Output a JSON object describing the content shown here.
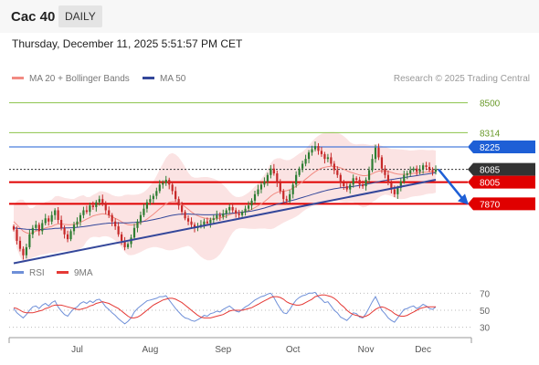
{
  "header": {
    "title": "Cac 40",
    "timeframe": "DAILY"
  },
  "timestamp": "Thursday, December 11, 2025 5:51:57 PM CET",
  "legend": {
    "ma20": "MA 20 + Bollinger Bands",
    "ma50": "MA 50",
    "credit": "Research © 2025 Trading Central"
  },
  "rsi_legend": {
    "rsi": "RSI",
    "ma9": "9MA"
  },
  "colors": {
    "up": "#2e7d32",
    "down": "#c62828",
    "resistance": "#8bc34a",
    "pivot": "#1e5fd6",
    "support": "#e00000",
    "last": "#333333",
    "trend": "#34479a",
    "band": "#fbe3e3",
    "rsi": "#6e8fd8",
    "rsi_ma": "#e53935"
  },
  "chart_data": [
    {
      "type": "candlestick",
      "x_labels": [
        "Jul",
        "Aug",
        "Sep",
        "Oct",
        "Nov",
        "Dec"
      ],
      "ylim": [
        7520,
        8600
      ],
      "levels": [
        {
          "label": "8500",
          "value": 8500,
          "kind": "resistance"
        },
        {
          "label": "8314",
          "value": 8314,
          "kind": "resistance"
        },
        {
          "label": "8225",
          "value": 8225,
          "kind": "pivot"
        },
        {
          "label": "8085",
          "value": 8085,
          "kind": "last"
        },
        {
          "label": "8005",
          "value": 8005,
          "kind": "support"
        },
        {
          "label": "7870",
          "value": 7870,
          "kind": "support"
        }
      ],
      "series": {
        "close": [
          7710,
          7640,
          7590,
          7550,
          7600,
          7680,
          7720,
          7740,
          7700,
          7750,
          7780,
          7760,
          7800,
          7830,
          7770,
          7720,
          7680,
          7650,
          7700,
          7740,
          7760,
          7800,
          7830,
          7820,
          7860,
          7850,
          7880,
          7900,
          7870,
          7830,
          7800,
          7760,
          7730,
          7680,
          7640,
          7600,
          7620,
          7660,
          7720,
          7760,
          7800,
          7840,
          7880,
          7900,
          7920,
          7950,
          7990,
          8000,
          8020,
          7990,
          7950,
          7900,
          7860,
          7820,
          7780,
          7760,
          7740,
          7720,
          7730,
          7740,
          7760,
          7750,
          7770,
          7780,
          7800,
          7790,
          7810,
          7830,
          7850,
          7830,
          7810,
          7800,
          7820,
          7840,
          7860,
          7890,
          7930,
          7960,
          7990,
          8010,
          8050,
          8090,
          8060,
          8000,
          7950,
          7900,
          7890,
          7930,
          7990,
          8050,
          8090,
          8120,
          8150,
          8190,
          8210,
          8230,
          8200,
          8180,
          8150,
          8160,
          8120,
          8080,
          8050,
          8000,
          7980,
          7960,
          7990,
          8030,
          8020,
          7990,
          7980,
          8020,
          8080,
          8150,
          8220,
          8160,
          8090,
          8050,
          8000,
          7960,
          7930,
          7970,
          8010,
          8050,
          8060,
          8080,
          8090,
          8070,
          8085,
          8110,
          8100,
          8080,
          8070,
          8085
        ],
        "ma20": [
          7760,
          7740,
          7720,
          7700,
          7690,
          7685,
          7690,
          7700,
          7705,
          7710,
          7720,
          7725,
          7730,
          7740,
          7745,
          7745,
          7742,
          7740,
          7740,
          7742,
          7748,
          7755,
          7765,
          7775,
          7785,
          7795,
          7800,
          7805,
          7808,
          7806,
          7800,
          7790,
          7780,
          7770,
          7758,
          7748,
          7740,
          7738,
          7740,
          7745,
          7752,
          7762,
          7775,
          7790,
          7805,
          7822,
          7840,
          7856,
          7870,
          7880,
          7884,
          7882,
          7876,
          7866,
          7852,
          7836,
          7820,
          7806,
          7796,
          7788,
          7782,
          7778,
          7776,
          7776,
          7778,
          7782,
          7788,
          7795,
          7802,
          7808,
          7812,
          7815,
          7818,
          7822,
          7828,
          7836,
          7846,
          7858,
          7870,
          7884,
          7900,
          7918,
          7932,
          7942,
          7948,
          7950,
          7952,
          7958,
          7968,
          7980,
          7994,
          8008,
          8024,
          8040,
          8056,
          8070,
          8082,
          8092,
          8098,
          8102,
          8104,
          8104,
          8100,
          8094,
          8086,
          8076,
          8068,
          8062,
          8056,
          8050,
          8046,
          8046,
          8050,
          8058,
          8068,
          8074,
          8076,
          8076,
          8072,
          8066,
          8060,
          8056,
          8054,
          8054,
          8055,
          8057,
          8060,
          8062,
          8064,
          8066,
          8068,
          8069,
          8070,
          8071
        ],
        "ma50": [
          7720,
          7718,
          7716,
          7714,
          7712,
          7711,
          7710,
          7710,
          7710,
          7711,
          7712,
          7713,
          7715,
          7717,
          7718,
          7719,
          7720,
          7720,
          7721,
          7722,
          7724,
          7726,
          7728,
          7731,
          7734,
          7737,
          7740,
          7743,
          7746,
          7748,
          7750,
          7751,
          7752,
          7752,
          7752,
          7752,
          7752,
          7753,
          7754,
          7756,
          7758,
          7761,
          7764,
          7768,
          7772,
          7776,
          7780,
          7785,
          7790,
          7795,
          7799,
          7802,
          7805,
          7806,
          7807,
          7807,
          7806,
          7805,
          7804,
          7803,
          7802,
          7802,
          7802,
          7803,
          7804,
          7805,
          7806,
          7808,
          7810,
          7812,
          7814,
          7816,
          7818,
          7820,
          7823,
          7826,
          7830,
          7834,
          7839,
          7844,
          7850,
          7856,
          7862,
          7868,
          7873,
          7878,
          7883,
          7888,
          7893,
          7898,
          7904,
          7910,
          7916,
          7922,
          7928,
          7934,
          7940,
          7946,
          7951,
          7956,
          7960,
          7964,
          7967,
          7970,
          7972,
          7974,
          7976,
          7979,
          7982,
          7985,
          7988,
          7992,
          7996,
          8000,
          8004,
          8008,
          8012,
          8016,
          8019,
          8022,
          8025,
          8028,
          8031,
          8034,
          8037,
          8040,
          8043,
          8046,
          8049,
          8052,
          8055,
          8058,
          8061,
          8064
        ]
      },
      "trendline": [
        [
          0,
          7500
        ],
        [
          133,
          8020
        ]
      ],
      "forecast_arrow": [
        8085,
        7870
      ]
    },
    {
      "type": "line",
      "title": "RSI",
      "ylim": [
        20,
        80
      ],
      "y_ticks": [
        "70",
        "50",
        "30"
      ],
      "series": [
        {
          "name": "RSI",
          "values": [
            52,
            47,
            44,
            41,
            45,
            50,
            54,
            55,
            52,
            56,
            58,
            55,
            59,
            61,
            54,
            49,
            45,
            43,
            48,
            52,
            54,
            58,
            60,
            58,
            61,
            59,
            62,
            63,
            59,
            54,
            51,
            47,
            44,
            40,
            37,
            34,
            37,
            41,
            48,
            52,
            55,
            58,
            61,
            62,
            63,
            64,
            66,
            66,
            67,
            62,
            57,
            52,
            48,
            44,
            41,
            40,
            38,
            37,
            39,
            41,
            44,
            43,
            46,
            47,
            49,
            48,
            51,
            53,
            55,
            52,
            49,
            48,
            51,
            54,
            56,
            59,
            62,
            64,
            66,
            67,
            69,
            70,
            65,
            58,
            52,
            47,
            46,
            51,
            57,
            62,
            65,
            67,
            68,
            70,
            70,
            71,
            66,
            63,
            59,
            60,
            55,
            50,
            47,
            42,
            40,
            38,
            42,
            47,
            46,
            42,
            41,
            46,
            53,
            60,
            66,
            58,
            50,
            46,
            41,
            38,
            36,
            41,
            46,
            51,
            52,
            54,
            55,
            52,
            54,
            57,
            55,
            52,
            51,
            54
          ]
        },
        {
          "name": "9MA",
          "values": [
            53,
            52,
            50,
            48,
            47,
            47,
            47,
            48,
            49,
            50,
            52,
            53,
            55,
            56,
            56,
            56,
            55,
            54,
            53,
            52,
            51,
            51,
            52,
            53,
            55,
            56,
            58,
            59,
            60,
            59,
            58,
            56,
            54,
            52,
            49,
            46,
            43,
            41,
            41,
            42,
            44,
            47,
            50,
            53,
            56,
            58,
            60,
            62,
            63,
            64,
            64,
            63,
            61,
            59,
            56,
            53,
            50,
            47,
            44,
            42,
            41,
            41,
            41,
            42,
            43,
            44,
            45,
            47,
            49,
            50,
            50,
            50,
            50,
            51,
            52,
            53,
            55,
            57,
            59,
            61,
            63,
            65,
            66,
            66,
            65,
            63,
            60,
            58,
            57,
            56,
            56,
            57,
            59,
            61,
            63,
            66,
            67,
            68,
            68,
            67,
            66,
            64,
            61,
            57,
            54,
            50,
            47,
            45,
            44,
            43,
            42,
            43,
            45,
            48,
            51,
            53,
            54,
            53,
            51,
            49,
            46,
            44,
            43,
            43,
            44,
            46,
            48,
            50,
            52,
            53,
            54,
            54,
            54,
            54
          ]
        }
      ]
    }
  ]
}
